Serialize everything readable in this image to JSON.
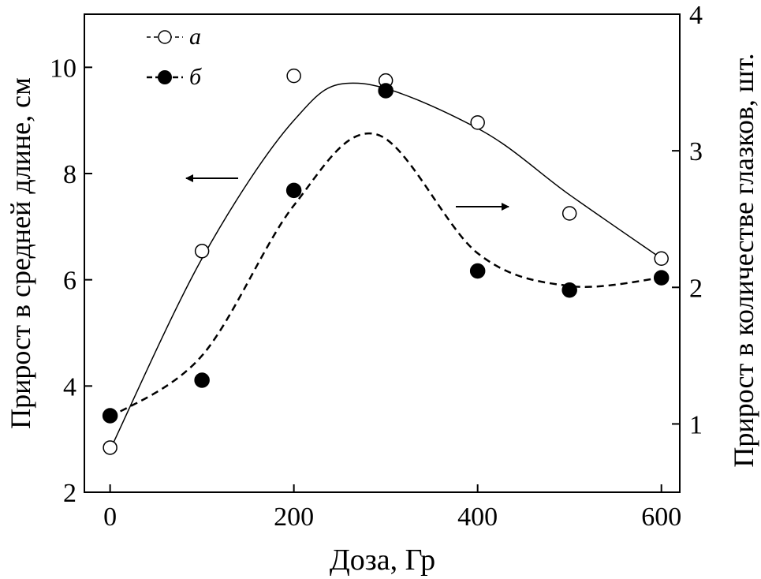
{
  "chart_data": {
    "type": "line",
    "title": "",
    "xlabel": "Доза, Гр",
    "ylabel_left": "Прирост в средней длине, см",
    "ylabel_right": "Прирост в количестве глазков, шт.",
    "xlim": [
      -28,
      620
    ],
    "ylim_left": [
      2,
      11
    ],
    "ylim_right": [
      0.5,
      4
    ],
    "x_ticks": [
      0,
      200,
      400,
      600
    ],
    "y_ticks_left": [
      2,
      4,
      6,
      8,
      10
    ],
    "y_ticks_right": [
      1,
      2,
      3,
      4
    ],
    "legend_position": "top-left",
    "series": [
      {
        "name": "а",
        "axis": "left",
        "marker": "open-circle",
        "line": "solid",
        "x": [
          0,
          100,
          200,
          300,
          400,
          500,
          600
        ],
        "y": [
          2.84,
          6.54,
          9.84,
          9.75,
          8.96,
          7.25,
          6.4
        ],
        "fit_x": [
          0,
          100,
          200,
          270,
          400,
          500,
          600
        ],
        "fit_y": [
          2.8,
          6.4,
          9.0,
          9.7,
          8.85,
          7.6,
          6.4
        ]
      },
      {
        "name": "б",
        "axis": "right",
        "marker": "filled-circle",
        "line": "dashed",
        "x": [
          0,
          100,
          200,
          300,
          400,
          500,
          600
        ],
        "y": [
          1.06,
          1.32,
          2.71,
          3.44,
          2.12,
          1.98,
          2.07
        ],
        "fit_x": [
          0,
          100,
          200,
          290,
          400,
          500,
          600
        ],
        "fit_y": [
          1.05,
          1.5,
          2.6,
          3.12,
          2.25,
          2.01,
          2.07
        ]
      }
    ],
    "annotations": [
      {
        "type": "arrow",
        "direction": "left",
        "refers_to": "а"
      },
      {
        "type": "arrow",
        "direction": "right",
        "refers_to": "б"
      }
    ]
  }
}
